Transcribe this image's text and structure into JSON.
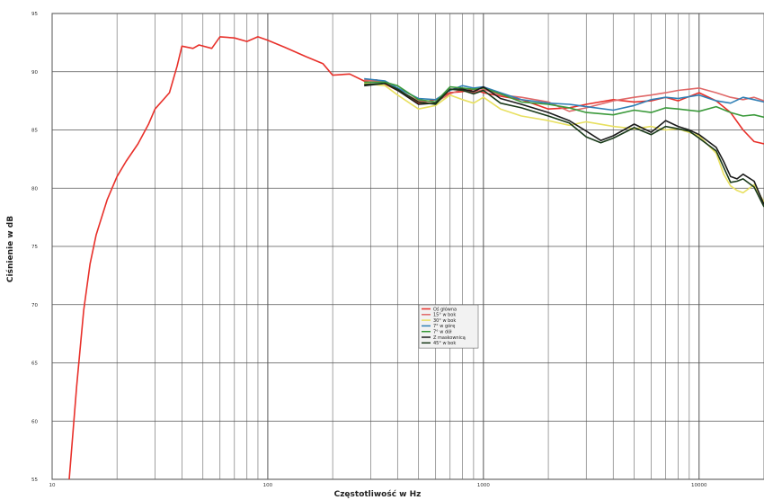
{
  "chart_data": {
    "type": "line",
    "title": "",
    "xlabel": "Częstotliwość w Hz",
    "ylabel": "Ciśnienie w dB",
    "x_scale": "log",
    "xlim": [
      10,
      20000
    ],
    "ylim": [
      55,
      95
    ],
    "x_ticks": [
      {
        "value": 10,
        "label": "10"
      },
      {
        "value": 100,
        "label": "100"
      },
      {
        "value": 1000,
        "label": "1000"
      },
      {
        "value": 10000,
        "label": "10000"
      }
    ],
    "y_ticks": [
      {
        "value": 55,
        "label": "55"
      },
      {
        "value": 60,
        "label": "60"
      },
      {
        "value": 65,
        "label": "65"
      },
      {
        "value": 70,
        "label": "70"
      },
      {
        "value": 75,
        "label": "75"
      },
      {
        "value": 80,
        "label": "80"
      },
      {
        "value": 85,
        "label": "85"
      },
      {
        "value": 90,
        "label": "90"
      },
      {
        "value": 95,
        "label": "95"
      }
    ],
    "grid": true,
    "legend_position": "center",
    "series": [
      {
        "name": "Oś główna",
        "color": "#e8302a",
        "points": [
          [
            12,
            55
          ],
          [
            13,
            63
          ],
          [
            14,
            69.5
          ],
          [
            15,
            73.5
          ],
          [
            16,
            76
          ],
          [
            18,
            79
          ],
          [
            20,
            81
          ],
          [
            22,
            82.3
          ],
          [
            25,
            83.8
          ],
          [
            28,
            85.5
          ],
          [
            30,
            86.8
          ],
          [
            35,
            88.2
          ],
          [
            38,
            90.5
          ],
          [
            40,
            92.2
          ],
          [
            45,
            92
          ],
          [
            48,
            92.3
          ],
          [
            55,
            92
          ],
          [
            60,
            93
          ],
          [
            70,
            92.9
          ],
          [
            80,
            92.6
          ],
          [
            90,
            93
          ],
          [
            100,
            92.7
          ],
          [
            120,
            92.1
          ],
          [
            150,
            91.3
          ],
          [
            180,
            90.7
          ],
          [
            200,
            89.7
          ],
          [
            240,
            89.8
          ],
          [
            280,
            89.2
          ],
          [
            320,
            89.3
          ],
          [
            400,
            88.4
          ],
          [
            500,
            87.3
          ],
          [
            600,
            87.6
          ],
          [
            700,
            88.2
          ],
          [
            800,
            88.3
          ],
          [
            900,
            88.5
          ],
          [
            1000,
            88.2
          ],
          [
            1200,
            87.9
          ],
          [
            1500,
            87.6
          ],
          [
            2000,
            86.8
          ],
          [
            2500,
            86.9
          ],
          [
            3000,
            87.2
          ],
          [
            4000,
            87.6
          ],
          [
            5000,
            87.4
          ],
          [
            6000,
            87.5
          ],
          [
            7000,
            87.8
          ],
          [
            8000,
            87.5
          ],
          [
            10000,
            88.2
          ],
          [
            12000,
            87.5
          ],
          [
            14000,
            86.5
          ],
          [
            16000,
            85
          ],
          [
            18000,
            84
          ],
          [
            20000,
            83.8
          ]
        ]
      },
      {
        "name": "15° w bok",
        "color": "#e06868",
        "points": [
          [
            280,
            89.3
          ],
          [
            350,
            89.1
          ],
          [
            400,
            88.4
          ],
          [
            500,
            87.5
          ],
          [
            600,
            87.4
          ],
          [
            700,
            88.1
          ],
          [
            800,
            88.5
          ],
          [
            900,
            88.2
          ],
          [
            1000,
            88.5
          ],
          [
            1200,
            88
          ],
          [
            1500,
            87.8
          ],
          [
            2000,
            87.4
          ],
          [
            2500,
            86.6
          ],
          [
            3000,
            86.9
          ],
          [
            4000,
            87.5
          ],
          [
            5000,
            87.8
          ],
          [
            6000,
            88
          ],
          [
            7000,
            88.2
          ],
          [
            8000,
            88.4
          ],
          [
            10000,
            88.6
          ],
          [
            12000,
            88.2
          ],
          [
            14000,
            87.8
          ],
          [
            16000,
            87.6
          ],
          [
            18000,
            87.8
          ],
          [
            20000,
            87.5
          ]
        ]
      },
      {
        "name": "30° w bok",
        "color": "#e8e060",
        "points": [
          [
            280,
            89
          ],
          [
            350,
            88.8
          ],
          [
            400,
            88
          ],
          [
            500,
            86.8
          ],
          [
            600,
            87.1
          ],
          [
            700,
            88
          ],
          [
            800,
            87.6
          ],
          [
            900,
            87.3
          ],
          [
            1000,
            87.8
          ],
          [
            1200,
            86.8
          ],
          [
            1500,
            86.2
          ],
          [
            2000,
            85.8
          ],
          [
            2500,
            85.4
          ],
          [
            3000,
            85.7
          ],
          [
            4000,
            85.3
          ],
          [
            5000,
            85.1
          ],
          [
            6000,
            85.3
          ],
          [
            7000,
            85
          ],
          [
            8000,
            85.1
          ],
          [
            10000,
            84.5
          ],
          [
            12000,
            83
          ],
          [
            13000,
            81.2
          ],
          [
            14000,
            80.2
          ],
          [
            15000,
            79.8
          ],
          [
            16000,
            79.6
          ],
          [
            18000,
            80.3
          ],
          [
            20000,
            78.8
          ]
        ]
      },
      {
        "name": "7° w górę",
        "color": "#2f7fb5",
        "points": [
          [
            280,
            89.4
          ],
          [
            350,
            89.2
          ],
          [
            400,
            88.6
          ],
          [
            500,
            87.7
          ],
          [
            600,
            87.6
          ],
          [
            700,
            88.4
          ],
          [
            800,
            88.8
          ],
          [
            900,
            88.6
          ],
          [
            1000,
            88.7
          ],
          [
            1200,
            88.2
          ],
          [
            1500,
            87.6
          ],
          [
            2000,
            87.3
          ],
          [
            2500,
            87.2
          ],
          [
            3000,
            87
          ],
          [
            4000,
            86.7
          ],
          [
            5000,
            87.1
          ],
          [
            6000,
            87.6
          ],
          [
            7000,
            87.8
          ],
          [
            8000,
            87.7
          ],
          [
            10000,
            88
          ],
          [
            12000,
            87.5
          ],
          [
            14000,
            87.3
          ],
          [
            16000,
            87.8
          ],
          [
            18000,
            87.6
          ],
          [
            20000,
            87.4
          ]
        ]
      },
      {
        "name": "7° w dół",
        "color": "#3b9a3b",
        "points": [
          [
            280,
            89.1
          ],
          [
            350,
            89.1
          ],
          [
            400,
            88.8
          ],
          [
            500,
            87.6
          ],
          [
            600,
            87.4
          ],
          [
            700,
            88.7
          ],
          [
            800,
            88.6
          ],
          [
            900,
            88.5
          ],
          [
            1000,
            88.6
          ],
          [
            1200,
            88.1
          ],
          [
            1500,
            87.4
          ],
          [
            2000,
            87.2
          ],
          [
            2500,
            86.9
          ],
          [
            3000,
            86.5
          ],
          [
            4000,
            86.3
          ],
          [
            5000,
            86.7
          ],
          [
            6000,
            86.5
          ],
          [
            7000,
            86.9
          ],
          [
            8000,
            86.8
          ],
          [
            10000,
            86.6
          ],
          [
            12000,
            87
          ],
          [
            14000,
            86.5
          ],
          [
            16000,
            86.2
          ],
          [
            18000,
            86.3
          ],
          [
            20000,
            86.1
          ]
        ]
      },
      {
        "name": "Z maskownicą",
        "color": "#1c1c1c",
        "points": [
          [
            280,
            88.8
          ],
          [
            350,
            89
          ],
          [
            400,
            88.4
          ],
          [
            500,
            87.2
          ],
          [
            600,
            87.3
          ],
          [
            700,
            88.5
          ],
          [
            800,
            88.5
          ],
          [
            900,
            88.3
          ],
          [
            1000,
            88.7
          ],
          [
            1200,
            87.7
          ],
          [
            1500,
            87.2
          ],
          [
            2000,
            86.5
          ],
          [
            2500,
            85.8
          ],
          [
            3000,
            84.9
          ],
          [
            3500,
            84.1
          ],
          [
            4000,
            84.5
          ],
          [
            5000,
            85.5
          ],
          [
            6000,
            84.8
          ],
          [
            7000,
            85.8
          ],
          [
            8000,
            85.3
          ],
          [
            9000,
            85
          ],
          [
            10000,
            84.6
          ],
          [
            12000,
            83.5
          ],
          [
            13000,
            82.3
          ],
          [
            14000,
            81
          ],
          [
            15000,
            80.8
          ],
          [
            16000,
            81.2
          ],
          [
            18000,
            80.6
          ],
          [
            20000,
            78.6
          ]
        ]
      },
      {
        "name": "45° w bok",
        "color": "#1a3a1a",
        "points": [
          [
            280,
            88.9
          ],
          [
            350,
            89
          ],
          [
            400,
            88.5
          ],
          [
            500,
            87.4
          ],
          [
            600,
            87.2
          ],
          [
            700,
            88.5
          ],
          [
            800,
            88.4
          ],
          [
            900,
            88.1
          ],
          [
            1000,
            88.4
          ],
          [
            1200,
            87.3
          ],
          [
            1500,
            86.9
          ],
          [
            2000,
            86.2
          ],
          [
            2500,
            85.6
          ],
          [
            3000,
            84.4
          ],
          [
            3500,
            83.9
          ],
          [
            4000,
            84.3
          ],
          [
            5000,
            85.2
          ],
          [
            6000,
            84.6
          ],
          [
            7000,
            85.3
          ],
          [
            8000,
            85.1
          ],
          [
            9000,
            84.9
          ],
          [
            10000,
            84.3
          ],
          [
            12000,
            83.2
          ],
          [
            13000,
            81.8
          ],
          [
            14000,
            80.5
          ],
          [
            15000,
            80.6
          ],
          [
            16000,
            80.8
          ],
          [
            18000,
            80.1
          ],
          [
            20000,
            78.4
          ]
        ]
      }
    ]
  }
}
